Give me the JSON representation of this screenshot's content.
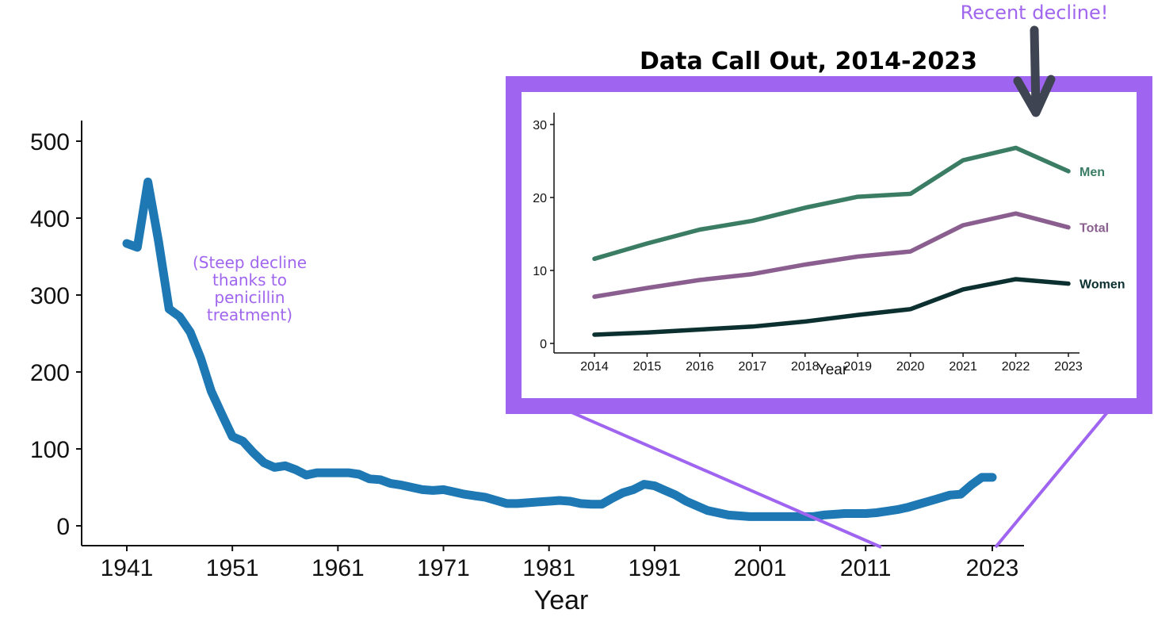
{
  "chart_data": [
    {
      "type": "line",
      "title": "",
      "xlabel": "Year",
      "ylabel": "",
      "xlim": [
        1941,
        2023
      ],
      "ylim": [
        0,
        500
      ],
      "x_ticks": [
        "1941",
        "1951",
        "1961",
        "1971",
        "1981",
        "1991",
        "2001",
        "2011",
        "2023"
      ],
      "y_ticks": [
        "0",
        "100",
        "200",
        "300",
        "400",
        "500"
      ],
      "series": [
        {
          "color": "#1e78b4",
          "points": [
            [
              1941,
              367
            ],
            [
              1942,
              362
            ],
            [
              1943,
              447
            ],
            [
              1944,
              370
            ],
            [
              1945,
              282
            ],
            [
              1946,
              272
            ],
            [
              1947,
              252
            ],
            [
              1948,
              218
            ],
            [
              1949,
              175
            ],
            [
              1950,
              145
            ],
            [
              1951,
              116
            ],
            [
              1952,
              110
            ],
            [
              1953,
              95
            ],
            [
              1954,
              82
            ],
            [
              1955,
              76
            ],
            [
              1956,
              78
            ],
            [
              1957,
              73
            ],
            [
              1958,
              66
            ],
            [
              1959,
              69
            ],
            [
              1960,
              69
            ],
            [
              1961,
              69
            ],
            [
              1962,
              69
            ],
            [
              1963,
              67
            ],
            [
              1964,
              61
            ],
            [
              1965,
              60
            ],
            [
              1966,
              55
            ],
            [
              1967,
              53
            ],
            [
              1968,
              50
            ],
            [
              1969,
              47
            ],
            [
              1970,
              46
            ],
            [
              1971,
              47
            ],
            [
              1972,
              44
            ],
            [
              1973,
              41
            ],
            [
              1974,
              39
            ],
            [
              1975,
              37
            ],
            [
              1976,
              33
            ],
            [
              1977,
              29
            ],
            [
              1978,
              29
            ],
            [
              1979,
              30
            ],
            [
              1980,
              31
            ],
            [
              1981,
              32
            ],
            [
              1982,
              33
            ],
            [
              1983,
              32
            ],
            [
              1984,
              29
            ],
            [
              1985,
              28
            ],
            [
              1986,
              28
            ],
            [
              1987,
              36
            ],
            [
              1988,
              43
            ],
            [
              1989,
              47
            ],
            [
              1990,
              54
            ],
            [
              1991,
              52
            ],
            [
              1992,
              46
            ],
            [
              1993,
              40
            ],
            [
              1994,
              32
            ],
            [
              1995,
              26
            ],
            [
              1996,
              20
            ],
            [
              1997,
              17
            ],
            [
              1998,
              14
            ],
            [
              1999,
              13
            ],
            [
              2000,
              12
            ],
            [
              2001,
              12
            ],
            [
              2002,
              12
            ],
            [
              2003,
              12
            ],
            [
              2004,
              12
            ],
            [
              2005,
              12
            ],
            [
              2006,
              12
            ],
            [
              2007,
              14
            ],
            [
              2008,
              15
            ],
            [
              2009,
              16
            ],
            [
              2010,
              16
            ],
            [
              2011,
              16
            ],
            [
              2012,
              17
            ],
            [
              2013,
              19
            ],
            [
              2014,
              21
            ],
            [
              2015,
              24
            ],
            [
              2016,
              28
            ],
            [
              2017,
              32
            ],
            [
              2018,
              36
            ],
            [
              2019,
              40
            ],
            [
              2020,
              41
            ],
            [
              2021,
              53
            ],
            [
              2022,
              63
            ],
            [
              2023,
              63
            ]
          ]
        }
      ],
      "annotations": [
        {
          "text": "(Steep decline thanks to penicillin treatment)",
          "lines": [
            "(Steep decline",
            "thanks to",
            "penicillin",
            "treatment)"
          ],
          "color": "#a066ee"
        }
      ]
    },
    {
      "type": "line",
      "title": "Data Call Out, 2014-2023",
      "xlabel": "Year",
      "ylabel": "",
      "xlim": [
        2014,
        2023
      ],
      "ylim": [
        0,
        30
      ],
      "x_ticks": [
        "2014",
        "2015",
        "2016",
        "2017",
        "2018",
        "2019",
        "2020",
        "2021",
        "2022",
        "2023"
      ],
      "y_ticks": [
        "0",
        "10",
        "20",
        "30"
      ],
      "categories": [
        2014,
        2015,
        2016,
        2017,
        2018,
        2019,
        2020,
        2021,
        2022,
        2023
      ],
      "series": [
        {
          "name": "Men",
          "color": "#3a7d64",
          "values": [
            11.6,
            13.7,
            15.6,
            16.8,
            18.6,
            20.1,
            20.5,
            25.1,
            26.8,
            23.6
          ]
        },
        {
          "name": "Total",
          "color": "#8a5f8f",
          "values": [
            6.4,
            7.6,
            8.7,
            9.5,
            10.8,
            11.9,
            12.6,
            16.2,
            17.8,
            15.9
          ]
        },
        {
          "name": "Women",
          "color": "#0c2f2f",
          "values": [
            1.2,
            1.5,
            1.9,
            2.3,
            3.0,
            3.9,
            4.7,
            7.4,
            8.8,
            8.2
          ]
        }
      ],
      "annotations": [
        {
          "text": "Recent decline!",
          "color": "#a066ee"
        }
      ],
      "frame_color": "#9f64f0",
      "arrow_color": "#3f4452"
    }
  ]
}
